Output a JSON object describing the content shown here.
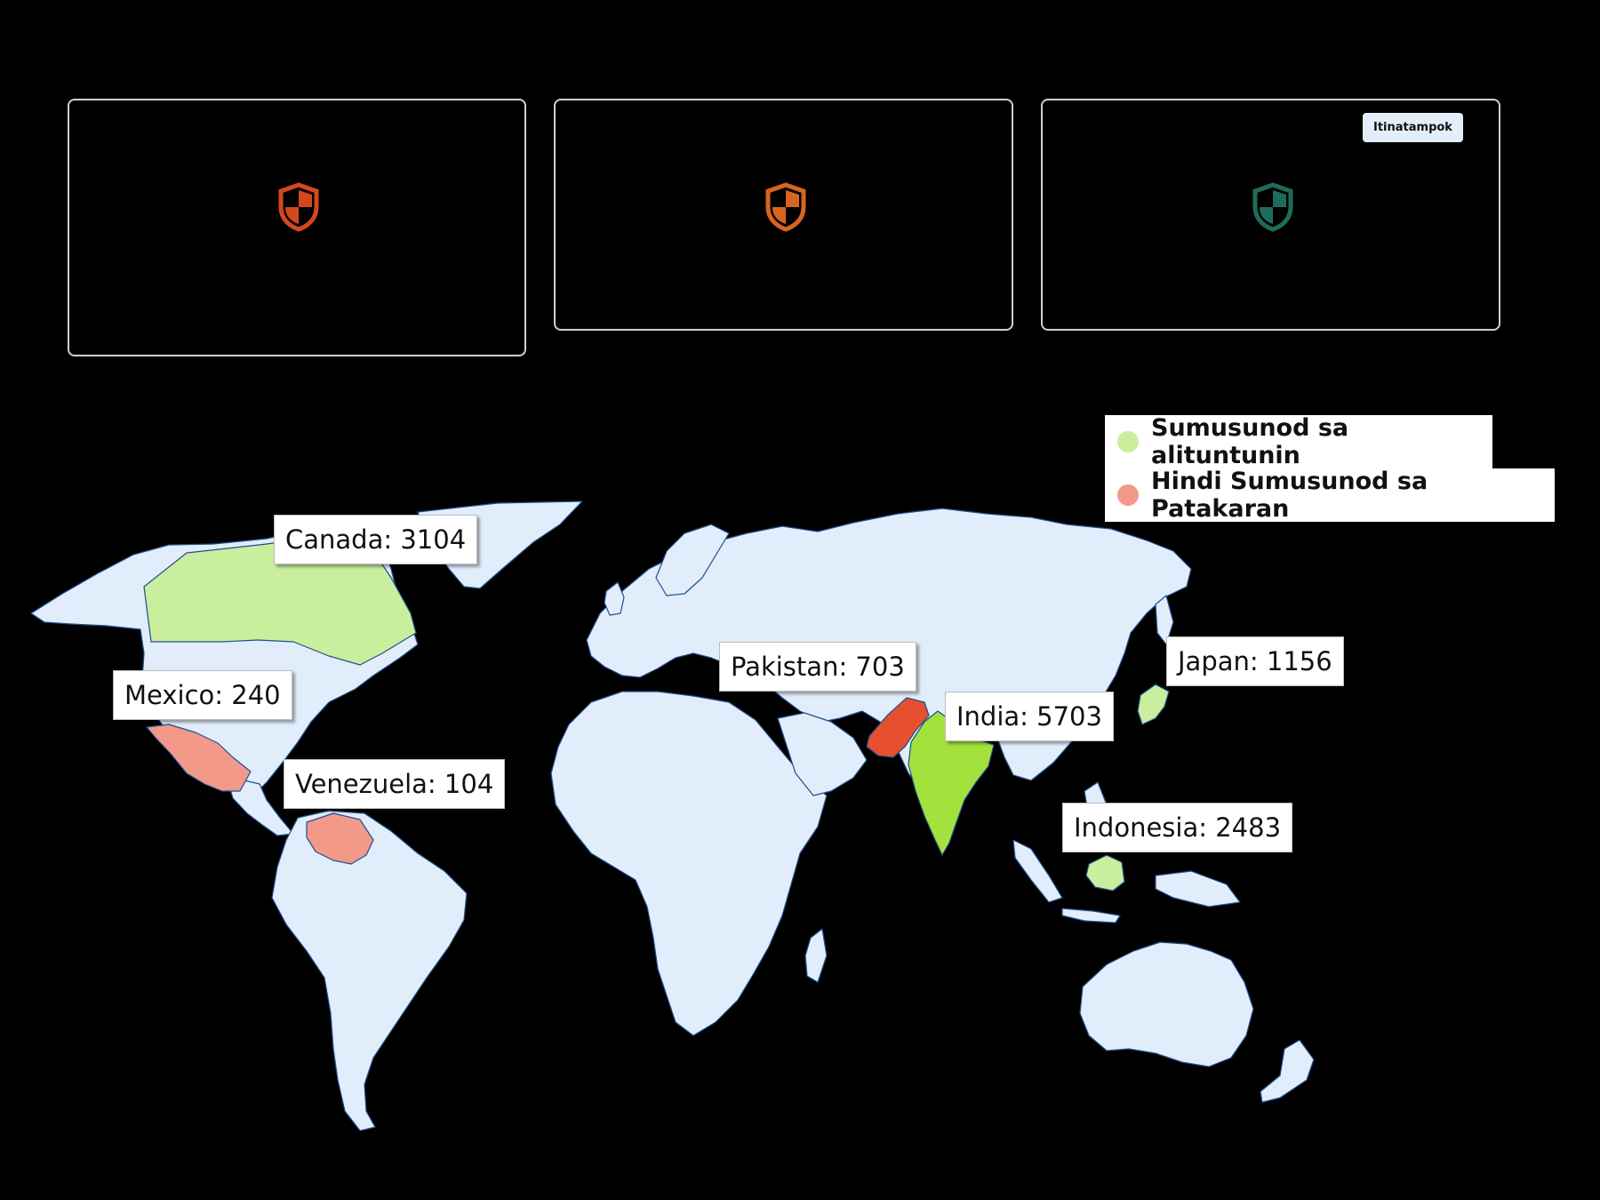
{
  "cards": [
    {
      "shield_color": "#d4481f",
      "icon": "shield-icon"
    },
    {
      "shield_color": "#d86421",
      "icon": "shield-icon"
    },
    {
      "shield_color": "#1f6b5a",
      "icon": "shield-icon",
      "badge": "Itinatampok"
    }
  ],
  "legend": [
    {
      "label": "Sumusunod sa alituntunin",
      "color": "#c9ee9d"
    },
    {
      "label": "Hindi Sumusunod sa Patakaran",
      "color": "#f2998a"
    }
  ],
  "map": {
    "land_color": "#e1edfb",
    "border_color": "#1f4e8a",
    "countries": [
      {
        "name": "Canada",
        "value": "3104",
        "label": "Canada: 3104",
        "status": "compliant",
        "color": "#c9ee9d"
      },
      {
        "name": "Mexico",
        "value": "240",
        "label": "Mexico:  240",
        "status": "non-compliant",
        "color": "#f2998a"
      },
      {
        "name": "Venezuela",
        "value": "104",
        "label": "Venezuela: 104",
        "status": "non-compliant",
        "color": "#f2998a"
      },
      {
        "name": "Pakistan",
        "value": "703",
        "label": "Pakistan: 703",
        "status": "non-compliant",
        "color": "#e6502f"
      },
      {
        "name": "India",
        "value": "5703",
        "label": "India: 5703",
        "status": "compliant",
        "color": "#a3e23d"
      },
      {
        "name": "Japan",
        "value": "1156",
        "label": "Japan: 1156",
        "status": "compliant",
        "color": "#c9ee9d"
      },
      {
        "name": "Indonesia",
        "value": "2483",
        "label": "Indonesia: 2483",
        "status": "compliant",
        "color": "#c9ee9d"
      }
    ]
  }
}
